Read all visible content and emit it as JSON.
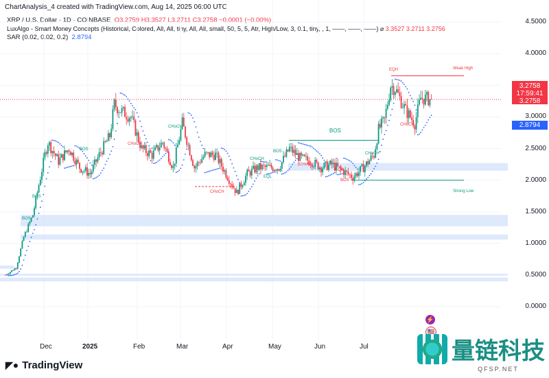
{
  "header": {
    "title": "ChartAnalysis_4 created with TradingView.com, Aug 14, 2025 06:00 UTC"
  },
  "legend": {
    "symbol": "XRP / U.S. Dollar · 1D · COINBASE",
    "o": "O3.2759",
    "h": "H3.3527",
    "l": "L3.2711",
    "c": "C3.2758",
    "chg": "−0.0001 (−0.00%)",
    "indicator": "LuxAlgo - Smart Money Concepts (Historical, Colored, All, All, tiny, All, All, small, 50, 5, 5, Atr, High/Low, 3, 0.1, tiny, , 1, ——, ——, ——)",
    "ind_vals": [
      "3.3527",
      "3.2711",
      "3.2756"
    ],
    "sar": "SAR (0.02, 0.02, 0.2)",
    "sar_val": "2.8794"
  },
  "price_label": {
    "price": "3.2758",
    "countdown": "17:59:41",
    "price2": "3.2758",
    "sar": "2.8794"
  },
  "colors": {
    "up": "#089981",
    "down": "#f23645",
    "sar": "#2962ff",
    "zone": "#d6e4fb"
  },
  "annotations": {
    "bos": "BOS",
    "choch": "CHoCH",
    "eqh": "EQH",
    "eql": "EQL",
    "weak_high": "Weak High",
    "strong_low": "Strong Low"
  },
  "logo": "TradingView",
  "watermark": {
    "text": "量链科技",
    "sub": "QFSP.NET"
  },
  "chart_data": {
    "type": "candlestick",
    "y_ticks": [
      "4.5000",
      "4.0000",
      "3.5000",
      "3.0000",
      "2.5000",
      "2.0000",
      "1.5000",
      "1.0000",
      "0.5000",
      "0.0000"
    ],
    "x_ticks": [
      "Dec",
      "2025",
      "Feb",
      "Mar",
      "Apr",
      "May",
      "Jun",
      "Jul"
    ],
    "ylim": [
      0,
      4.5
    ],
    "close_path": [
      [
        "2024-11-05",
        0.5
      ],
      [
        "2024-11-12",
        0.62
      ],
      [
        "2024-11-17",
        1.1
      ],
      [
        "2024-11-23",
        1.45
      ],
      [
        "2024-12-01",
        2.4
      ],
      [
        "2024-12-03",
        2.6
      ],
      [
        "2024-12-10",
        2.3
      ],
      [
        "2024-12-17",
        2.5
      ],
      [
        "2024-12-24",
        2.2
      ],
      [
        "2024-12-31",
        2.1
      ],
      [
        "2025-01-06",
        2.4
      ],
      [
        "2025-01-13",
        2.7
      ],
      [
        "2025-01-16",
        3.2
      ],
      [
        "2025-01-20",
        3.1
      ],
      [
        "2025-01-27",
        3.0
      ],
      [
        "2025-02-03",
        2.5
      ],
      [
        "2025-02-10",
        2.4
      ],
      [
        "2025-02-17",
        2.6
      ],
      [
        "2025-02-24",
        2.2
      ],
      [
        "2025-03-02",
        2.9
      ],
      [
        "2025-03-10",
        2.2
      ],
      [
        "2025-03-17",
        2.4
      ],
      [
        "2025-03-24",
        2.4
      ],
      [
        "2025-03-31",
        2.1
      ],
      [
        "2025-04-07",
        1.8
      ],
      [
        "2025-04-14",
        2.1
      ],
      [
        "2025-04-21",
        2.2
      ],
      [
        "2025-04-28",
        2.2
      ],
      [
        "2025-05-05",
        2.2
      ],
      [
        "2025-05-12",
        2.5
      ],
      [
        "2025-05-19",
        2.35
      ],
      [
        "2025-05-26",
        2.3
      ],
      [
        "2025-06-02",
        2.2
      ],
      [
        "2025-06-09",
        2.25
      ],
      [
        "2025-06-16",
        2.15
      ],
      [
        "2025-06-23",
        2.05
      ],
      [
        "2025-06-30",
        2.2
      ],
      [
        "2025-07-07",
        2.4
      ],
      [
        "2025-07-10",
        2.8
      ],
      [
        "2025-07-14",
        2.95
      ],
      [
        "2025-07-18",
        3.5
      ],
      [
        "2025-07-21",
        3.45
      ],
      [
        "2025-07-28",
        3.1
      ],
      [
        "2025-08-03",
        2.9
      ],
      [
        "2025-08-07",
        3.3
      ],
      [
        "2025-08-14",
        3.2758
      ]
    ]
  }
}
